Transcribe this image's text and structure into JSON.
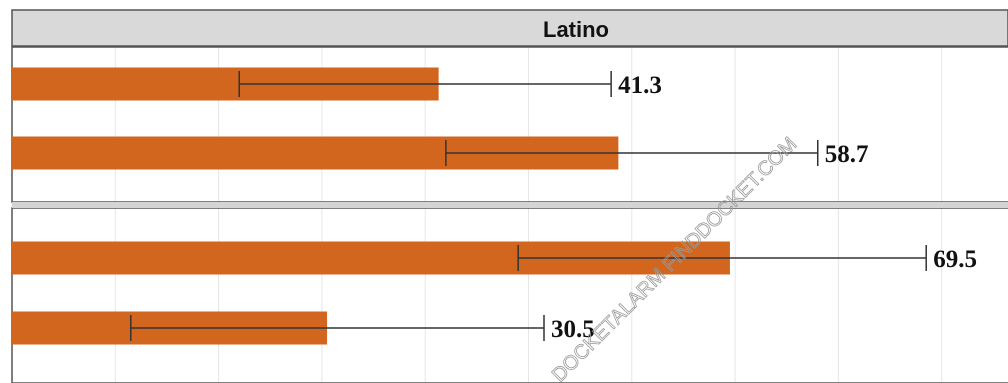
{
  "chart_data": {
    "type": "bar",
    "orientation": "horizontal",
    "facet_title": "Latino",
    "panels": [
      {
        "bars": [
          {
            "value": 41.3,
            "label": "41.3",
            "ci_low": 22.0,
            "ci_high": 58.0
          },
          {
            "value": 58.7,
            "label": "58.7",
            "ci_low": 42.0,
            "ci_high": 78.0
          }
        ]
      },
      {
        "bars": [
          {
            "value": 69.5,
            "label": "69.5",
            "ci_low": 49.0,
            "ci_high": 88.5
          },
          {
            "value": 30.5,
            "label": "30.5",
            "ci_low": 11.5,
            "ci_high": 51.5
          }
        ]
      }
    ],
    "xlim": [
      0,
      100
    ],
    "grid": true,
    "bar_color": "#d2661e",
    "errorbar_color": "#333333"
  },
  "watermark": "DOCKETALARM  FINDDOCKET.COM"
}
